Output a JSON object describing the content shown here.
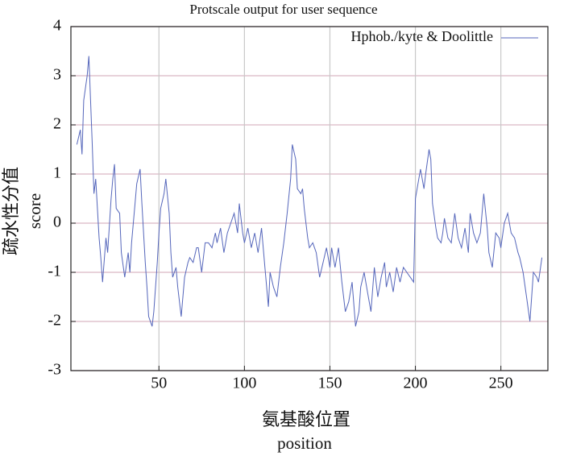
{
  "chart_data": {
    "type": "line",
    "title": "Protscale output for user sequence",
    "x_label": "position",
    "x_label_cn": "氨基酸位置",
    "y_label": "score",
    "y_label_cn": "疏水性分值",
    "x": [
      2,
      4,
      5,
      6,
      8,
      9,
      10,
      11,
      12,
      13,
      15,
      16,
      17,
      19,
      20,
      22,
      23,
      24,
      25,
      27,
      28,
      30,
      32,
      33,
      34,
      36,
      37,
      39,
      40,
      42,
      43,
      44,
      46,
      47,
      49,
      50,
      51,
      53,
      54,
      56,
      57,
      58,
      60,
      61,
      63,
      65,
      67,
      68,
      70,
      72,
      73,
      75,
      77,
      79,
      81,
      83,
      84,
      86,
      88,
      90,
      92,
      94,
      96,
      97,
      99,
      100,
      102,
      104,
      106,
      108,
      110,
      112,
      114,
      115,
      117,
      119,
      121,
      123,
      125,
      127,
      128,
      130,
      131,
      133,
      134,
      135,
      137,
      138,
      140,
      142,
      144,
      146,
      148,
      150,
      151,
      153,
      155,
      157,
      159,
      161,
      163,
      165,
      167,
      168,
      170,
      172,
      174,
      176,
      178,
      180,
      182,
      183,
      185,
      187,
      189,
      191,
      193,
      195,
      197,
      199,
      200,
      202,
      203,
      205,
      206,
      208,
      209,
      210,
      212,
      213,
      215,
      216,
      217,
      219,
      221,
      223,
      225,
      227,
      229,
      231,
      232,
      234,
      236,
      238,
      240,
      242,
      243,
      245,
      247,
      249,
      250,
      252,
      254,
      256,
      258,
      260,
      261,
      263,
      265,
      267,
      269,
      271,
      272,
      274
    ],
    "series": [
      {
        "name": "Hphob./kyte & Doolittle",
        "color": "#5566bb",
        "values": [
          1.6,
          1.9,
          1.4,
          2.5,
          3.0,
          3.4,
          2.5,
          1.6,
          0.6,
          0.9,
          -0.3,
          -0.7,
          -1.2,
          -0.3,
          -0.6,
          0.5,
          0.9,
          1.2,
          0.3,
          0.2,
          -0.6,
          -1.1,
          -0.6,
          -1.0,
          -0.4,
          0.4,
          0.8,
          1.1,
          0.4,
          -0.8,
          -1.3,
          -1.9,
          -2.1,
          -1.8,
          -0.8,
          -0.2,
          0.3,
          0.6,
          0.9,
          0.2,
          -0.6,
          -1.1,
          -0.9,
          -1.3,
          -1.9,
          -1.1,
          -0.8,
          -0.7,
          -0.8,
          -0.5,
          -0.5,
          -1.0,
          -0.4,
          -0.4,
          -0.5,
          -0.2,
          -0.4,
          -0.1,
          -0.6,
          -0.2,
          0.0,
          0.2,
          -0.2,
          0.4,
          -0.2,
          -0.4,
          -0.1,
          -0.5,
          -0.2,
          -0.6,
          -0.1,
          -0.9,
          -1.7,
          -1.0,
          -1.3,
          -1.5,
          -0.9,
          -0.4,
          0.2,
          0.9,
          1.6,
          1.3,
          0.7,
          0.6,
          0.7,
          0.3,
          -0.3,
          -0.5,
          -0.4,
          -0.6,
          -1.1,
          -0.8,
          -0.5,
          -0.9,
          -0.5,
          -0.9,
          -0.5,
          -1.2,
          -1.8,
          -1.6,
          -1.2,
          -2.1,
          -1.8,
          -1.3,
          -1.0,
          -1.4,
          -1.8,
          -0.9,
          -1.5,
          -1.1,
          -0.8,
          -1.3,
          -1.0,
          -1.4,
          -0.9,
          -1.2,
          -0.9,
          -1.0,
          -1.1,
          -1.2,
          0.5,
          0.9,
          1.1,
          0.7,
          1.0,
          1.5,
          1.3,
          0.4,
          -0.1,
          -0.3,
          -0.4,
          -0.2,
          0.1,
          -0.3,
          -0.4,
          0.2,
          -0.3,
          -0.5,
          -0.1,
          -0.6,
          0.2,
          -0.2,
          -0.4,
          -0.2,
          0.6,
          -0.1,
          -0.6,
          -0.9,
          -0.2,
          -0.3,
          -0.5,
          0.0,
          0.2,
          -0.2,
          -0.3,
          -0.6,
          -0.7,
          -1.0,
          -1.5,
          -2.0,
          -1.0,
          -1.1,
          -1.2,
          -0.7
        ]
      }
    ],
    "xlim": [
      -1.5,
      277.5
    ],
    "xticks": [
      50,
      100,
      150,
      200,
      250
    ],
    "ylim": [
      -3,
      4
    ],
    "yticks": [
      -3,
      -2,
      -1,
      0,
      1,
      2,
      3,
      4
    ],
    "grid": true,
    "legend": "upper right"
  }
}
